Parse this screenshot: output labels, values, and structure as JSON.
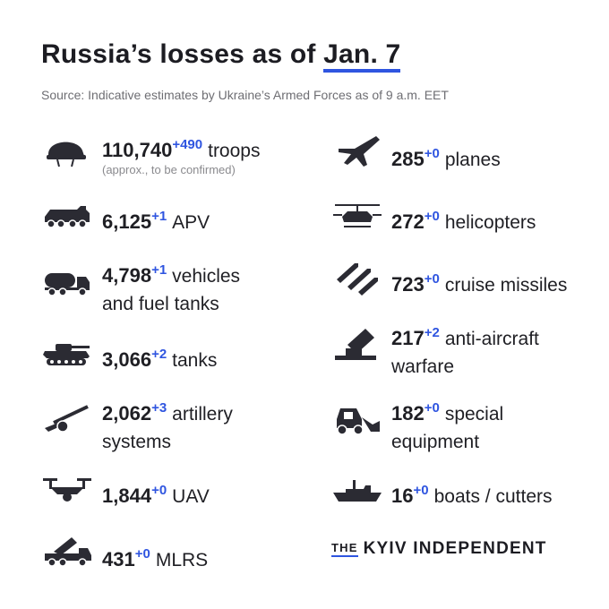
{
  "header": {
    "title_main": "Russia’s losses",
    "title_mid": "as of",
    "title_date": "Jan. 7",
    "subtitle": "Source: Indicative estimates by Ukraine’s Armed Forces as of 9 a.m. EET"
  },
  "left": [
    {
      "icon": "helmet-icon",
      "value": "110,740",
      "delta": "+490",
      "label": "troops",
      "note": "(approx., to be confirmed)"
    },
    {
      "icon": "apv-icon",
      "value": "6,125",
      "delta": "+1",
      "label": "APV"
    },
    {
      "icon": "fuel-truck-icon",
      "value": "4,798",
      "delta": "+1",
      "label": "vehicles",
      "label2": "and fuel tanks"
    },
    {
      "icon": "tank-icon",
      "value": "3,066",
      "delta": "+2",
      "label": "tanks"
    },
    {
      "icon": "artillery-icon",
      "value": "2,062",
      "delta": "+3",
      "label": "artillery",
      "label2": "systems"
    },
    {
      "icon": "drone-icon",
      "value": "1,844",
      "delta": "+0",
      "label": "UAV"
    },
    {
      "icon": "mlrs-icon",
      "value": "431",
      "delta": "+0",
      "label": "MLRS"
    }
  ],
  "right": [
    {
      "icon": "jet-icon",
      "value": "285",
      "delta": "+0",
      "label": "planes"
    },
    {
      "icon": "helicopter-icon",
      "value": "272",
      "delta": "+0",
      "label": "helicopters"
    },
    {
      "icon": "missiles-icon",
      "value": "723",
      "delta": "+0",
      "label": "cruise missiles"
    },
    {
      "icon": "anti-aircraft-icon",
      "value": "217",
      "delta": "+2",
      "label": "anti-aircraft",
      "label2": "warfare"
    },
    {
      "icon": "loader-icon",
      "value": "182",
      "delta": "+0",
      "label": "special",
      "label2": "equipment"
    },
    {
      "icon": "warship-icon",
      "value": "16",
      "delta": "+0",
      "label": "boats / cutters"
    }
  ],
  "logo": {
    "the": "THE",
    "name": "KYIV INDEPENDENT"
  },
  "colors": {
    "accent": "#2f55e0",
    "text": "#1f1f24",
    "icon": "#2b2b33",
    "muted": "#6e6e73"
  }
}
